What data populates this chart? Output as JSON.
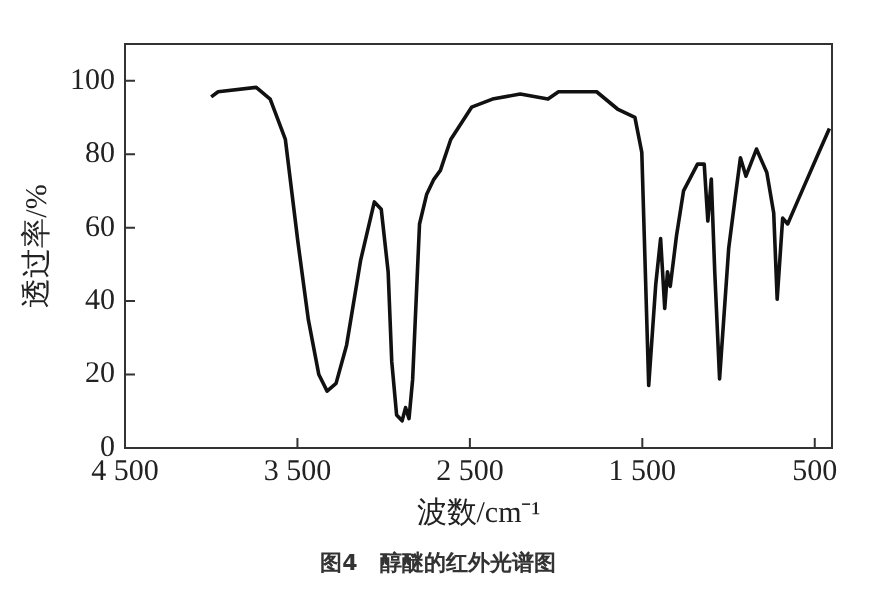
{
  "chart_data": {
    "type": "line",
    "xlabel": "波数/cm⁻¹",
    "ylabel": "透过率/%",
    "annotations": [
      "图4　醇醚的红外光谱图"
    ],
    "series": [
      {
        "color": "#111111",
        "x": [
          4000,
          3960,
          3739,
          3658,
          3618,
          3570,
          3497,
          3437,
          3376,
          3328,
          3276,
          3215,
          3134,
          3054,
          3014,
          2974,
          2953,
          2925,
          2893,
          2873,
          2853,
          2832,
          2792,
          2751,
          2711,
          2671,
          2611,
          2490,
          2369,
          2208,
          2047,
          1986,
          1765,
          1644,
          1543,
          1503,
          1463,
          1422,
          1394,
          1370,
          1354,
          1338,
          1302,
          1261,
          1180,
          1141,
          1120,
          1100,
          1080,
          1052,
          999,
          959,
          931,
          899,
          838,
          778,
          738,
          718,
          686,
          657,
          597,
          476,
          415
        ],
        "values": [
          95.6,
          97,
          98.2,
          95,
          90,
          84,
          56,
          35,
          20,
          15.5,
          17.6,
          28,
          51,
          67,
          65,
          48,
          23.5,
          9,
          7.4,
          11,
          8,
          18.6,
          61,
          69,
          73,
          75.6,
          84,
          92.8,
          95,
          96.4,
          95,
          97,
          97,
          92.3,
          90,
          80.5,
          17,
          44.6,
          57,
          38,
          48,
          44,
          57.7,
          70,
          77.3,
          77.3,
          61.8,
          73.2,
          48,
          18.8,
          54.4,
          69,
          79,
          74,
          81.4,
          75,
          64,
          40.5,
          62.6,
          61,
          67.5,
          80.5,
          87
        ]
      }
    ],
    "xlim": [
      4500,
      400
    ],
    "xticks": [
      {
        "value": 4500,
        "label": "4 500"
      },
      {
        "value": 3500,
        "label": "3 500"
      },
      {
        "value": 2500,
        "label": "2 500"
      },
      {
        "value": 1500,
        "label": "1 500"
      },
      500
    ],
    "ylim": [
      0,
      110
    ],
    "yticks": [
      0,
      20,
      40,
      60,
      80,
      100
    ],
    "grid": false,
    "legend": false,
    "marker": "none",
    "line_style": "solid"
  }
}
